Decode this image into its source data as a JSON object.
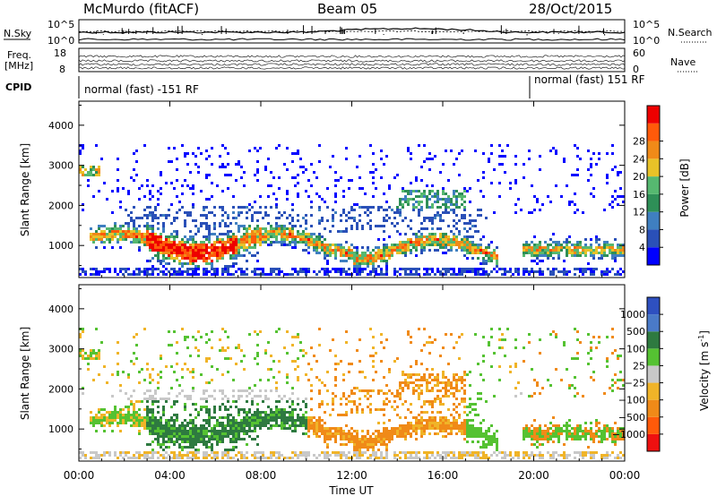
{
  "header": {
    "site": "McMurdo (fitACF)",
    "beam": "Beam 05",
    "date": "28/Oct/2015"
  },
  "panels": {
    "nsky": {
      "label": "N.Sky",
      "ticks_left": [
        "10^5",
        "10^0"
      ],
      "label_right": "N.Search",
      "ticks_right": [
        "10^5",
        "10^0"
      ]
    },
    "freq": {
      "label_line1": "Freq.",
      "label_line2": "[MHz]",
      "ticks_left": [
        "18",
        "8"
      ],
      "label_right": "Nave",
      "ticks_right": [
        "60",
        "0"
      ]
    },
    "cpid": {
      "label": "CPID",
      "segments": [
        "normal (fast) -151 RF",
        "normal (fast) 151 RF"
      ]
    }
  },
  "colors": {
    "power": [
      "#0000ff",
      "#2a50b8",
      "#3f7fc0",
      "#2e8f57",
      "#56b870",
      "#e8c228",
      "#f08a18",
      "#ff5a0a",
      "#ee0000"
    ],
    "velocity": [
      "#2e50c0",
      "#4a7ac8",
      "#2e7a40",
      "#55c232",
      "#c8c8c8",
      "#f0b428",
      "#f08a18",
      "#ff5a0a",
      "#ee1010"
    ],
    "gray": "#c8c8c8"
  },
  "chart_data": [
    {
      "type": "heatmap",
      "name": "power",
      "ylabel": "Slant Range [km]",
      "yticks": [
        "1000",
        "2000",
        "3000",
        "4000"
      ],
      "ylim": [
        200,
        4600
      ],
      "xlim": [
        0,
        24
      ],
      "xticks": [
        "00:00",
        "04:00",
        "08:00",
        "12:00",
        "16:00",
        "20:00",
        "00:00"
      ],
      "colorbar": {
        "label": "Power [dB]",
        "ticks": [
          "4",
          "8",
          "12",
          "16",
          "20",
          "24",
          "28"
        ],
        "range": [
          0,
          32
        ]
      }
    },
    {
      "type": "heatmap",
      "name": "velocity",
      "ylabel": "Slant Range [km]",
      "yticks": [
        "1000",
        "2000",
        "3000",
        "4000"
      ],
      "ylim": [
        200,
        4600
      ],
      "xlim": [
        0,
        24
      ],
      "xticks": [
        "00:00",
        "04:00",
        "08:00",
        "12:00",
        "16:00",
        "20:00",
        "00:00"
      ],
      "xlabel": "Time UT",
      "colorbar": {
        "label": "Velocity [m s^-1]",
        "ticks": [
          "1000",
          "500",
          "100",
          "25",
          "−25",
          "−100",
          "−500",
          "−1000"
        ]
      }
    }
  ]
}
